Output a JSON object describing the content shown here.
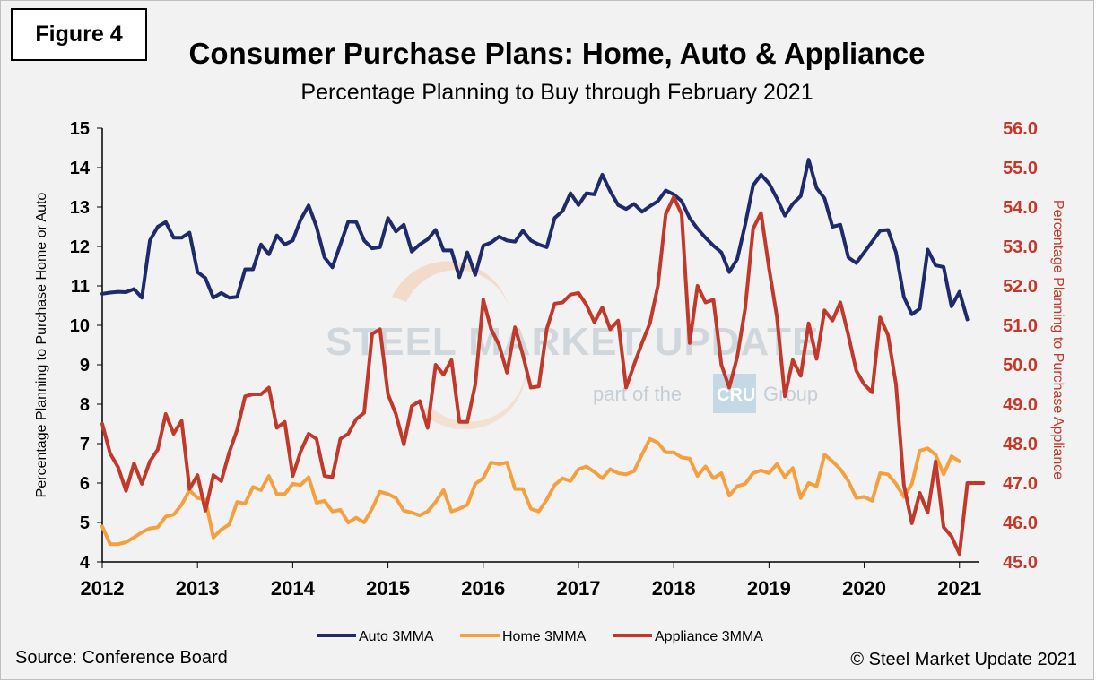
{
  "badge": "Figure 4",
  "title": "Consumer Purchase Plans: Home, Auto & Appliance",
  "subtitle": "Percentage Planning to Buy through February 2021",
  "source": "Source: Conference Board",
  "copyright": "© Steel Market Update 2021",
  "watermark": {
    "main": "STEEL MARKET UPDATE",
    "sub_left": "part of the",
    "sub_brand": "CRU",
    "sub_right": "Group"
  },
  "chart_data": {
    "type": "line",
    "x_tick_labels": [
      "2012",
      "2013",
      "2014",
      "2015",
      "2016",
      "2017",
      "2018",
      "2019",
      "2020",
      "2021"
    ],
    "x_range": [
      2012,
      2021.2
    ],
    "y_left": {
      "label": "Percentage Planning to Purchase Home or Auto",
      "range": [
        4,
        15
      ],
      "ticks": [
        "4",
        "5",
        "6",
        "7",
        "8",
        "9",
        "10",
        "11",
        "12",
        "13",
        "14",
        "15"
      ]
    },
    "y_right": {
      "label": "Percentage Planning to Purchase Appliance",
      "range": [
        45,
        56
      ],
      "ticks": [
        "45.0",
        "46.0",
        "47.0",
        "48.0",
        "49.0",
        "50.0",
        "51.0",
        "52.0",
        "53.0",
        "54.0",
        "55.0",
        "56.0"
      ]
    },
    "legend_position": "bottom",
    "series": [
      {
        "name": "Auto 3MMA",
        "axis": "left",
        "color": "#1f2a6b",
        "values": [
          10.8,
          10.83,
          10.85,
          10.84,
          10.92,
          10.7,
          12.15,
          12.5,
          12.62,
          12.22,
          12.22,
          12.35,
          11.35,
          11.2,
          10.7,
          10.82,
          10.7,
          10.72,
          11.42,
          11.42,
          12.05,
          11.8,
          12.28,
          12.05,
          12.15,
          12.68,
          13.04,
          12.5,
          11.72,
          11.47,
          12.05,
          12.63,
          12.62,
          12.15,
          11.95,
          11.98,
          12.72,
          12.38,
          12.55,
          11.87,
          12.05,
          12.18,
          12.42,
          11.9,
          11.9,
          11.22,
          11.85,
          11.28,
          12.02,
          12.1,
          12.25,
          12.15,
          12.12,
          12.4,
          12.15,
          12.05,
          11.98,
          12.72,
          12.9,
          13.35,
          13.05,
          13.35,
          13.32,
          13.82,
          13.4,
          13.05,
          12.95,
          13.08,
          12.88,
          13.02,
          13.15,
          13.42,
          13.32,
          13.15,
          12.72,
          12.45,
          12.22,
          12.02,
          11.85,
          11.35,
          11.68,
          12.55,
          13.55,
          13.82,
          13.6,
          13.22,
          12.78,
          13.08,
          13.28,
          14.2,
          13.48,
          13.22,
          12.5,
          12.55,
          11.72,
          11.58,
          11.85,
          12.12,
          12.4,
          12.42,
          11.85,
          10.72,
          10.28,
          10.42,
          11.92,
          11.52,
          11.48,
          10.48,
          10.85,
          10.15
        ]
      },
      {
        "name": "Home 3MMA",
        "axis": "left",
        "color": "#f4a040",
        "values": [
          4.9,
          4.45,
          4.45,
          4.5,
          4.62,
          4.75,
          4.85,
          4.88,
          5.15,
          5.2,
          5.45,
          5.82,
          5.62,
          5.58,
          4.62,
          4.82,
          4.95,
          5.52,
          5.48,
          5.9,
          5.82,
          6.18,
          5.72,
          5.72,
          5.98,
          5.95,
          6.15,
          5.5,
          5.55,
          5.28,
          5.32,
          5.0,
          5.12,
          5.0,
          5.35,
          5.78,
          5.72,
          5.62,
          5.3,
          5.25,
          5.18,
          5.28,
          5.52,
          5.82,
          5.28,
          5.35,
          5.45,
          5.98,
          6.12,
          6.52,
          6.48,
          6.52,
          5.85,
          5.85,
          5.35,
          5.28,
          5.58,
          5.95,
          6.12,
          6.05,
          6.35,
          6.42,
          6.28,
          6.12,
          6.35,
          6.25,
          6.22,
          6.3,
          6.72,
          7.12,
          7.02,
          6.78,
          6.78,
          6.65,
          6.62,
          6.18,
          6.42,
          6.12,
          6.25,
          5.68,
          5.92,
          5.98,
          6.25,
          6.32,
          6.25,
          6.48,
          6.15,
          6.38,
          5.62,
          6.0,
          5.92,
          6.72,
          6.55,
          6.35,
          6.05,
          5.62,
          5.65,
          5.55,
          6.25,
          6.22,
          5.98,
          5.65,
          5.98,
          6.82,
          6.88,
          6.72,
          6.22,
          6.68,
          6.55
        ]
      },
      {
        "name": "Appliance 3MMA",
        "axis": "right",
        "color": "#c0392b",
        "values": [
          48.5,
          47.75,
          47.4,
          46.8,
          47.5,
          46.98,
          47.55,
          47.85,
          48.75,
          48.25,
          48.58,
          46.85,
          47.2,
          46.3,
          47.2,
          47.05,
          47.78,
          48.35,
          49.2,
          49.25,
          49.25,
          49.42,
          48.4,
          48.55,
          47.18,
          47.8,
          48.25,
          48.12,
          47.18,
          47.15,
          48.12,
          48.25,
          48.62,
          48.78,
          50.78,
          50.9,
          49.25,
          48.75,
          47.98,
          48.95,
          49.08,
          48.4,
          50.0,
          49.75,
          50.12,
          48.55,
          48.55,
          49.5,
          51.65,
          50.9,
          50.5,
          49.8,
          50.95,
          50.25,
          49.42,
          49.45,
          50.9,
          51.55,
          51.58,
          51.78,
          51.82,
          51.52,
          51.08,
          51.45,
          50.9,
          51.12,
          49.42,
          50.0,
          50.55,
          51.05,
          52.0,
          53.82,
          54.25,
          53.82,
          50.55,
          52.0,
          51.58,
          51.65,
          50.0,
          49.42,
          50.2,
          51.42,
          53.45,
          53.85,
          52.45,
          51.22,
          49.2,
          50.12,
          49.72,
          51.05,
          50.15,
          51.38,
          51.12,
          51.58,
          50.75,
          49.85,
          49.5,
          49.3,
          51.2,
          50.75,
          49.5,
          46.95,
          45.98,
          46.75,
          46.25,
          47.55,
          45.88,
          45.65,
          45.2,
          47.0,
          47.0,
          47.0
        ]
      }
    ]
  }
}
